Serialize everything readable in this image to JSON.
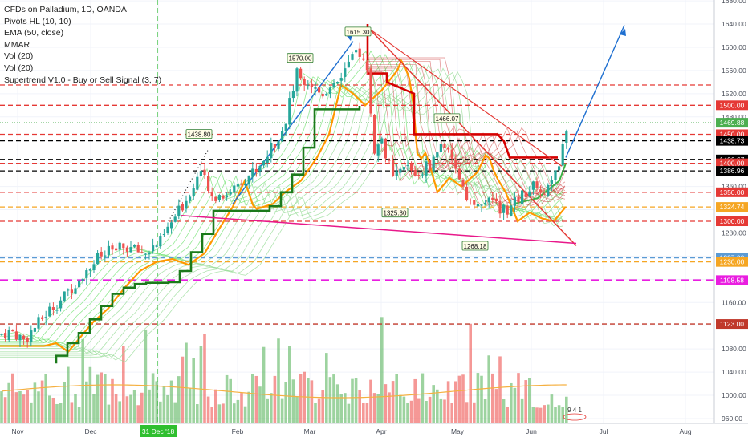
{
  "legend": {
    "symbol": "CFDs on Palladium, 1D, OANDA",
    "indicators": [
      "Pivots HL (10, 10)",
      "EMA (50, close)",
      "MMAR",
      "Vol (20)",
      "Vol (20)",
      "Supertrend V1.0 - Buy or Sell Signal (3, 7)"
    ]
  },
  "colors": {
    "up": "#26a69a",
    "down": "#ef5350",
    "ema": "#ff9800",
    "supertrend_up": "#1b7a1b",
    "supertrend_down": "#d50000",
    "ribbon_green": "#66e066",
    "ribbon_red": "#c62828",
    "trendline": "#e8188a",
    "projection": "#1e6fd0",
    "date_marker": "#2fbf2f"
  },
  "chart_data": {
    "type": "candlestick",
    "title": "CFDs on Palladium, 1D, OANDA",
    "ylim": [
      955,
      1690
    ],
    "x_ticks": [
      "Nov",
      "Dec",
      "31 Dec '18",
      "Feb",
      "Mar",
      "Apr",
      "May",
      "Jun",
      "Jul",
      "Aug"
    ],
    "y_ticks": [
      960,
      1000,
      1040,
      1080,
      1120,
      1160,
      1200,
      1240,
      1280,
      1320,
      1360,
      1400,
      1440,
      1480,
      1520,
      1560,
      1600,
      1640,
      1680
    ],
    "price_path": [
      [
        0,
        1105
      ],
      [
        15,
        1110
      ],
      [
        30,
        1095
      ],
      [
        45,
        1120
      ],
      [
        60,
        1145
      ],
      [
        80,
        1170
      ],
      [
        100,
        1205
      ],
      [
        120,
        1235
      ],
      [
        140,
        1250
      ],
      [
        160,
        1255
      ],
      [
        180,
        1245
      ],
      [
        200,
        1265
      ],
      [
        215,
        1300
      ],
      [
        235,
        1345
      ],
      [
        250,
        1390
      ],
      [
        262,
        1340
      ],
      [
        285,
        1350
      ],
      [
        300,
        1370
      ],
      [
        320,
        1390
      ],
      [
        340,
        1430
      ],
      [
        355,
        1470
      ],
      [
        370,
        1555
      ],
      [
        385,
        1540
      ],
      [
        400,
        1520
      ],
      [
        420,
        1545
      ],
      [
        440,
        1580
      ],
      [
        446,
        1600
      ],
      [
        458,
        1555
      ],
      [
        466,
        1420
      ],
      [
        476,
        1440
      ],
      [
        490,
        1370
      ],
      [
        505,
        1395
      ],
      [
        520,
        1380
      ],
      [
        540,
        1405
      ],
      [
        552,
        1440
      ],
      [
        562,
        1400
      ],
      [
        575,
        1370
      ],
      [
        590,
        1320
      ],
      [
        605,
        1335
      ],
      [
        620,
        1325
      ],
      [
        635,
        1320
      ],
      [
        650,
        1345
      ],
      [
        665,
        1360
      ],
      [
        680,
        1345
      ],
      [
        693,
        1380
      ],
      [
        700,
        1420
      ],
      [
        707,
        1465
      ]
    ],
    "horizontal_levels": [
      {
        "price": 1615.3,
        "label": "1615.30",
        "kind": "price"
      },
      {
        "price": 1570.0,
        "label": "1570.00",
        "kind": "price"
      },
      {
        "price": 1466.07,
        "label": "1466.07",
        "kind": "price"
      },
      {
        "price": 1438.8,
        "label": "1438.80",
        "kind": "price"
      },
      {
        "price": 1325.3,
        "label": "1325.30",
        "kind": "price"
      },
      {
        "price": 1268.18,
        "label": "1268.18",
        "kind": "price"
      }
    ],
    "axis_labels": [
      {
        "label": "1500.00",
        "price": 1500,
        "color": "#e53935"
      },
      {
        "label": "1469.88",
        "price": 1469.88,
        "color": "#4caf50"
      },
      {
        "label": "1450.00",
        "price": 1450,
        "color": "#e53935"
      },
      {
        "label": "1438.73",
        "price": 1438.73,
        "color": "#000000"
      },
      {
        "label": "1406.67",
        "price": 1406.67,
        "color": "#000000"
      },
      {
        "label": "1400.00",
        "price": 1400,
        "color": "#e53935"
      },
      {
        "label": "1386.96",
        "price": 1386.96,
        "color": "#000000"
      },
      {
        "label": "1350.00",
        "price": 1350,
        "color": "#e53935"
      },
      {
        "label": "1324.74",
        "price": 1324.74,
        "color": "#f5a623"
      },
      {
        "label": "1300.00",
        "price": 1300,
        "color": "#e53935"
      },
      {
        "label": "1237.00",
        "price": 1237,
        "color": "#5b9bd5"
      },
      {
        "label": "1230.00",
        "price": 1230,
        "color": "#f5a623"
      },
      {
        "label": "1198.58",
        "price": 1198.58,
        "color": "#e91ee0"
      },
      {
        "label": "1123.00",
        "price": 1123,
        "color": "#c0392b"
      }
    ],
    "level_lines": [
      {
        "price": 1535,
        "color": "#e53935",
        "dash": "6,4"
      },
      {
        "price": 1500,
        "color": "#e53935",
        "dash": "6,4"
      },
      {
        "price": 1469.88,
        "color": "#4caf50",
        "dash": "1,2"
      },
      {
        "price": 1450,
        "color": "#e53935",
        "dash": "6,4"
      },
      {
        "price": 1438.73,
        "color": "#000000",
        "dash": "6,4"
      },
      {
        "price": 1406.67,
        "color": "#000000",
        "dash": "6,4"
      },
      {
        "price": 1400,
        "color": "#e53935",
        "dash": "6,4"
      },
      {
        "price": 1386.96,
        "color": "#000000",
        "dash": "6,4"
      },
      {
        "price": 1350,
        "color": "#e53935",
        "dash": "6,4"
      },
      {
        "price": 1324.74,
        "color": "#f5a623",
        "dash": "6,4"
      },
      {
        "price": 1300,
        "color": "#e53935",
        "dash": "6,4"
      },
      {
        "price": 1237,
        "color": "#5b9bd5",
        "dash": "6,4"
      },
      {
        "price": 1230,
        "color": "#f5a623",
        "dash": "6,4"
      },
      {
        "price": 1198.58,
        "color": "#e91ee0",
        "dash": "10,6"
      },
      {
        "price": 1123,
        "color": "#c0392b",
        "dash": "6,4"
      }
    ],
    "footer_glyphs": "9 4 1"
  }
}
